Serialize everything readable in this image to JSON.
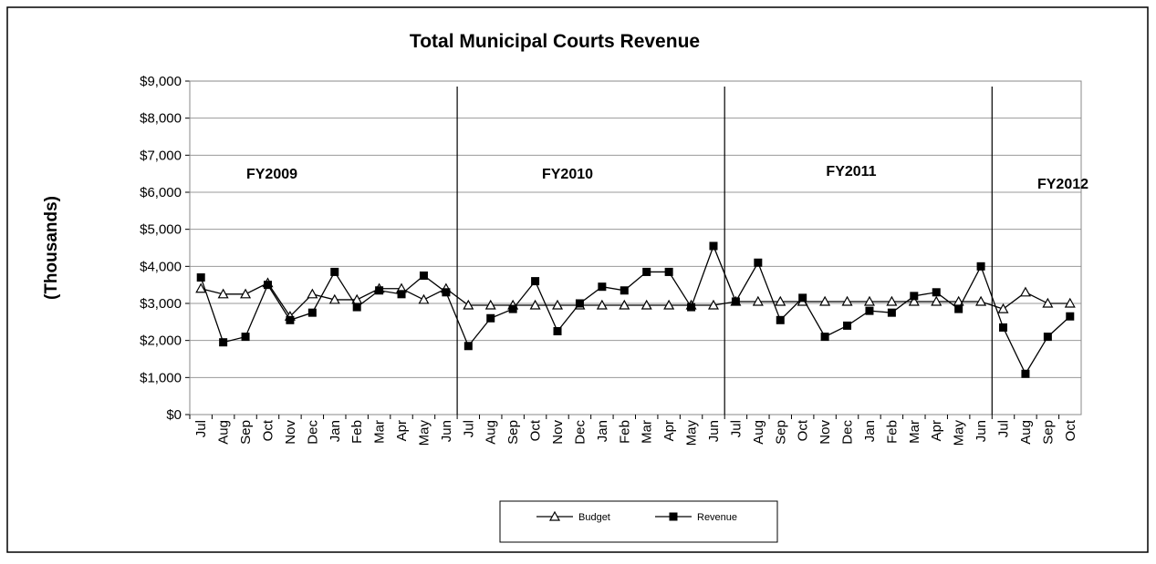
{
  "chart_data": {
    "type": "line",
    "title": "Total Municipal Courts Revenue",
    "y_label": "(Thousands)",
    "annotations": [
      "FY2009",
      "FY2010",
      "FY2011",
      "FY2012"
    ],
    "categories": [
      "Jul",
      "Aug",
      "Sep",
      "Oct",
      "Nov",
      "Dec",
      "Jan",
      "Feb",
      "Mar",
      "Apr",
      "May",
      "Jun",
      "Jul",
      "Aug",
      "Sep",
      "Oct",
      "Nov",
      "Dec",
      "Jan",
      "Feb",
      "Mar",
      "Apr",
      "May",
      "Jun",
      "Jul",
      "Aug",
      "Sep",
      "Oct",
      "Nov",
      "Dec",
      "Jan",
      "Feb",
      "Mar",
      "Apr",
      "May",
      "Jun",
      "Jul",
      "Aug",
      "Sep",
      "Oct"
    ],
    "series": [
      {
        "name": "Budget",
        "color": "#000000",
        "marker": "triangle",
        "values": [
          3400,
          3250,
          3250,
          3550,
          2650,
          3250,
          3100,
          3100,
          3400,
          3400,
          3100,
          3400,
          2950,
          2950,
          2950,
          2950,
          2950,
          2950,
          2950,
          2950,
          2950,
          2950,
          2950,
          2950,
          3050,
          3050,
          3050,
          3050,
          3050,
          3050,
          3050,
          3050,
          3050,
          3050,
          3050,
          3050,
          2850,
          3300,
          3000,
          3000
        ]
      },
      {
        "name": "Revenue",
        "color": "#000000",
        "marker": "square",
        "values": [
          3700,
          1950,
          2100,
          3500,
          2550,
          2750,
          3850,
          2900,
          3350,
          3250,
          3750,
          3300,
          1850,
          2600,
          2850,
          3600,
          2250,
          3000,
          3450,
          3350,
          3850,
          3850,
          2900,
          4550,
          3050,
          4100,
          2550,
          3150,
          2100,
          2400,
          2800,
          2750,
          3200,
          3300,
          2850,
          4000,
          2350,
          1100,
          2100,
          2650
        ]
      }
    ],
    "ylim": [
      0,
      9000
    ],
    "yticks": [
      {
        "value": 0,
        "label": "$0"
      },
      {
        "value": 1000,
        "label": "$1,000"
      },
      {
        "value": 2000,
        "label": "$2,000"
      },
      {
        "value": 3000,
        "label": "$3,000"
      },
      {
        "value": 4000,
        "label": "$4,000"
      },
      {
        "value": 5000,
        "label": "$5,000"
      },
      {
        "value": 6000,
        "label": "$6,000"
      },
      {
        "value": 7000,
        "label": "$7,000"
      },
      {
        "value": 8000,
        "label": "$8,000"
      },
      {
        "value": 9000,
        "label": "$9,000"
      }
    ],
    "grid": true,
    "legend": "bottom"
  }
}
